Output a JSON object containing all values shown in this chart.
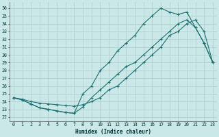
{
  "xlabel": "Humidex (Indice chaleur)",
  "bg_color": "#cbe8e8",
  "grid_color": "#aacccc",
  "line_color": "#1a7070",
  "xlim": [
    -0.5,
    23.5
  ],
  "ylim": [
    21.5,
    36.8
  ],
  "xticks": [
    0,
    1,
    2,
    3,
    4,
    5,
    6,
    7,
    8,
    9,
    10,
    11,
    12,
    13,
    14,
    15,
    16,
    17,
    18,
    19,
    20,
    21,
    22,
    23
  ],
  "yticks": [
    22,
    23,
    24,
    25,
    26,
    27,
    28,
    29,
    30,
    31,
    32,
    33,
    34,
    35,
    36
  ],
  "curve1_x": [
    0,
    1,
    2,
    3,
    4,
    5,
    6,
    7,
    8,
    9,
    10,
    11,
    12,
    13,
    14,
    15,
    16,
    17,
    18,
    19,
    20,
    21,
    22,
    23
  ],
  "curve1_y": [
    24.5,
    24.2,
    23.7,
    23.2,
    23.0,
    22.8,
    22.6,
    22.5,
    23.3,
    24.5,
    25.5,
    26.5,
    27.5,
    28.5,
    29.0,
    30.0,
    31.0,
    32.0,
    33.0,
    34.0,
    34.5,
    33.5,
    31.5,
    29.0
  ],
  "curve2_x": [
    0,
    1,
    2,
    3,
    4,
    5,
    6,
    7,
    8,
    9,
    10,
    11,
    12,
    13,
    14,
    15,
    16,
    17,
    18,
    19,
    20,
    21,
    22,
    23
  ],
  "curve2_y": [
    24.5,
    24.3,
    24.0,
    23.8,
    23.7,
    23.6,
    23.5,
    23.4,
    23.6,
    24.0,
    24.5,
    25.5,
    26.0,
    27.0,
    28.0,
    29.0,
    30.0,
    31.0,
    32.5,
    33.0,
    34.0,
    34.5,
    33.0,
    29.0
  ],
  "curve3_x": [
    0,
    1,
    2,
    3,
    4,
    5,
    6,
    7,
    8,
    9,
    10,
    11,
    12,
    13,
    14,
    15,
    16,
    17,
    18,
    19,
    20,
    21,
    22,
    23
  ],
  "curve3_y": [
    24.5,
    24.2,
    23.7,
    23.2,
    23.0,
    22.8,
    22.6,
    22.5,
    25.0,
    26.0,
    28.0,
    29.0,
    30.5,
    31.5,
    32.5,
    34.0,
    35.0,
    36.0,
    35.5,
    35.2,
    35.5,
    33.5,
    31.5,
    29.0
  ]
}
